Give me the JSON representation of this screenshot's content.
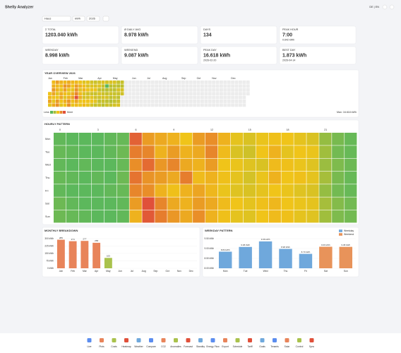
{
  "header": {
    "title": "Shelly Analyzer",
    "language": "DE | EN"
  },
  "controls": {
    "device": "Haus",
    "unit": "kWh",
    "year": "2026"
  },
  "kpis": [
    {
      "label": "Σ TOTAL",
      "value": "1203.040 kWh"
    },
    {
      "label": "Ø DAILY AVG",
      "value": "8.978 kWh"
    },
    {
      "label": "DAYS",
      "value": "134"
    },
    {
      "label": "PEAK HOUR",
      "value": "7:00",
      "sub": "0.642 kWh"
    },
    {
      "label": "WEEKDAY",
      "value": "8.998 kWh"
    },
    {
      "label": "WEEKEND",
      "value": "9.087 kWh"
    },
    {
      "label": "PEAK DAY",
      "value": "16.618 kWh",
      "sub": "2026-02-20"
    },
    {
      "label": "BEST DAY",
      "value": "1.873 kWh",
      "sub": "2026-04-14"
    }
  ],
  "year_overview": {
    "title": "YEAR OVERVIEW 2026",
    "months": [
      "Jan",
      "Feb",
      "Mar",
      "Apr",
      "May",
      "Jun",
      "Jul",
      "Aug",
      "Sep",
      "Oct",
      "Nov",
      "Dec"
    ],
    "values": [
      9.2,
      10.1,
      11.3,
      8.7,
      9.8,
      10.5,
      12.0,
      11.2,
      9.4,
      8.8,
      10.9,
      11.6,
      9.9,
      10.2,
      8.5,
      9.1,
      11.8,
      12.4,
      10.3,
      9.6,
      8.9,
      10.7,
      11.1,
      9.3,
      8.6,
      10.0,
      12.2,
      11.5,
      9.7,
      8.4,
      10.6,
      9.5,
      10.8,
      11.4,
      9.0,
      8.7,
      10.3,
      11.9,
      12.6,
      10.1,
      9.4,
      8.8,
      10.5,
      11.2,
      9.7,
      8.9,
      10.0,
      11.7,
      12.3,
      13.1,
      16.618,
      11.0,
      9.8,
      9.2,
      10.4,
      8.6,
      9.9,
      10.7,
      9.1,
      9.0,
      8.4,
      9.6,
      10.2,
      8.1,
      7.9,
      9.3,
      10.0,
      8.7,
      8.2,
      9.1,
      7.6,
      8.0,
      9.4,
      8.8,
      7.8,
      8.3,
      9.0,
      7.5,
      8.6,
      9.2,
      7.9,
      7.4,
      8.1,
      8.9,
      7.2,
      7.7,
      8.5,
      7.1,
      7.8,
      8.4,
      7.0,
      8.1,
      7.4,
      6.8,
      7.6,
      8.3,
      7.2,
      6.9,
      7.5,
      8.0,
      7.3,
      6.6,
      7.8,
      1.873,
      6.4,
      7.1,
      7.9,
      6.7,
      7.4,
      8.2,
      6.5,
      7.0,
      7.6,
      6.8,
      6.3,
      7.3,
      8.0,
      6.9,
      6.6,
      7.2,
      7.4,
      6.9,
      7.8,
      7.1,
      6.6,
      8.0,
      7.3,
      6.8,
      7.5,
      8.1,
      7.2,
      6.7,
      7.9,
      7.6
    ],
    "legend_low": "Less",
    "legend_high": "More",
    "max_label": "Max: 16.618 kWh",
    "colors": [
      "#5cb85c",
      "#f0c419",
      "#e0503a"
    ],
    "empty_color": "#ececec"
  },
  "hourly_pattern": {
    "title": "HOURLY PATTERN",
    "days": [
      "Mon",
      "Tue",
      "Wed",
      "Thu",
      "Fri",
      "Sat",
      "Sun"
    ],
    "hour_ticks": [
      0,
      3,
      6,
      9,
      12,
      15,
      18,
      21
    ],
    "values": [
      [
        0.21,
        0.2,
        0.2,
        0.2,
        0.21,
        0.22,
        0.68,
        0.55,
        0.52,
        0.5,
        0.46,
        0.55,
        0.58,
        0.5,
        0.44,
        0.42,
        0.45,
        0.47,
        0.46,
        0.44,
        0.42,
        0.3,
        0.25,
        0.22
      ],
      [
        0.22,
        0.21,
        0.2,
        0.2,
        0.21,
        0.23,
        0.62,
        0.6,
        0.5,
        0.55,
        0.5,
        0.52,
        0.6,
        0.48,
        0.42,
        0.4,
        0.46,
        0.5,
        0.44,
        0.46,
        0.45,
        0.32,
        0.24,
        0.22
      ],
      [
        0.21,
        0.2,
        0.21,
        0.2,
        0.2,
        0.22,
        0.58,
        0.66,
        0.56,
        0.6,
        0.52,
        0.5,
        0.55,
        0.46,
        0.45,
        0.43,
        0.42,
        0.48,
        0.47,
        0.45,
        0.43,
        0.31,
        0.26,
        0.23
      ],
      [
        0.22,
        0.21,
        0.2,
        0.21,
        0.2,
        0.23,
        0.64,
        0.57,
        0.55,
        0.52,
        0.62,
        0.48,
        0.5,
        0.47,
        0.44,
        0.41,
        0.45,
        0.5,
        0.46,
        0.47,
        0.44,
        0.33,
        0.25,
        0.22
      ],
      [
        0.21,
        0.2,
        0.2,
        0.2,
        0.21,
        0.22,
        0.6,
        0.58,
        0.5,
        0.47,
        0.5,
        0.53,
        0.49,
        0.45,
        0.43,
        0.42,
        0.44,
        0.46,
        0.45,
        0.43,
        0.42,
        0.3,
        0.24,
        0.22
      ],
      [
        0.23,
        0.21,
        0.2,
        0.2,
        0.2,
        0.21,
        0.55,
        0.72,
        0.6,
        0.52,
        0.5,
        0.55,
        0.52,
        0.48,
        0.46,
        0.44,
        0.47,
        0.49,
        0.46,
        0.45,
        0.44,
        0.33,
        0.27,
        0.24
      ],
      [
        0.23,
        0.22,
        0.21,
        0.2,
        0.2,
        0.21,
        0.5,
        0.7,
        0.62,
        0.56,
        0.52,
        0.58,
        0.5,
        0.47,
        0.44,
        0.43,
        0.46,
        0.48,
        0.47,
        0.44,
        0.43,
        0.32,
        0.26,
        0.24
      ]
    ],
    "colors": [
      "#5cb85c",
      "#f0c419",
      "#e0503a"
    ]
  },
  "chart_data": [
    {
      "type": "bar",
      "title": "MONTHLY BREAKDOWN",
      "categories": [
        "Jan",
        "Feb",
        "Mar",
        "Apr",
        "May",
        "Jun",
        "Jul",
        "Aug",
        "Sep",
        "Oct",
        "Nov",
        "Dec"
      ],
      "values": [
        289,
        274,
        277,
        258,
        105,
        null,
        null,
        null,
        null,
        null,
        null,
        null
      ],
      "colors": [
        "#e8845a",
        "#e8845a",
        "#e8845a",
        "#e8845a",
        "#a9c24c",
        null,
        null,
        null,
        null,
        null,
        null,
        null
      ],
      "ylim": [
        0,
        300
      ],
      "yticks": [
        {
          "value": 0,
          "label": "0 kWh"
        },
        {
          "value": 75,
          "label": "75 kWh"
        },
        {
          "value": 150,
          "label": "150 kWh"
        },
        {
          "value": 225,
          "label": "225 kWh"
        },
        {
          "value": 300,
          "label": "300 kWh"
        }
      ],
      "grid": true
    },
    {
      "type": "bar",
      "title": "WEEKDAY PATTERN",
      "categories": [
        "Mon",
        "Tue",
        "Wed",
        "Thu",
        "Fri",
        "Sat",
        "Sun"
      ],
      "series": [
        {
          "name": "Weekday",
          "color": "#6fa8dc",
          "values": [
            8.84,
            9.08,
            9.36,
            8.98,
            8.73,
            null,
            null
          ],
          "value_labels": [
            "8.84 kWh",
            "9.08 kWh",
            "9.36 kWh",
            "8.98 kWh",
            "8.73 kWh",
            null,
            null
          ]
        },
        {
          "name": "Weekend",
          "color": "#e8935a",
          "values": [
            null,
            null,
            null,
            null,
            null,
            9.09,
            9.084
          ],
          "value_labels": [
            null,
            null,
            null,
            null,
            null,
            "9.09 kWh",
            "9.08 kWh"
          ]
        }
      ],
      "ylim": [
        8,
        9.5
      ],
      "yticks": [
        {
          "value": 8,
          "label": "8.00 kWh"
        },
        {
          "value": 8.5,
          "label": "8.50 kWh"
        },
        {
          "value": 9,
          "label": "9.00 kWh"
        },
        {
          "value": 9.5,
          "label": "9.50 kWh"
        }
      ],
      "grid": true,
      "legend": "top-right"
    }
  ],
  "nav": [
    "Live",
    "Plots",
    "Costs",
    "Heatmap",
    "Weather",
    "Compare",
    "CO2",
    "Anomalies",
    "Forecast",
    "Standby",
    "Energy Flow",
    "Export",
    "Schedule",
    "Tariff",
    "Goals",
    "Tenants",
    "Solar",
    "Control",
    "Sync"
  ]
}
